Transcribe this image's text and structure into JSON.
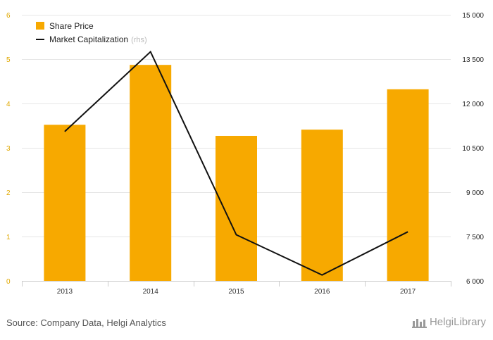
{
  "chart_data": {
    "type": "bar",
    "categories": [
      "2013",
      "2014",
      "2015",
      "2016",
      "2017"
    ],
    "series": [
      {
        "name": "Share Price",
        "kind": "bar",
        "axis": "left",
        "color": "#f7a900",
        "values": [
          3.52,
          4.87,
          3.27,
          3.41,
          4.32
        ]
      },
      {
        "name": "Market Capitalization",
        "axis_note": "(rhs)",
        "kind": "line",
        "axis": "right",
        "color": "#111111",
        "values": [
          11050,
          13750,
          7560,
          6200,
          7660
        ]
      }
    ],
    "left_axis": {
      "ylim": [
        0,
        6
      ],
      "ticks": [
        "0",
        "1",
        "2",
        "3",
        "4",
        "5",
        "6"
      ],
      "color": "#e0a800"
    },
    "right_axis": {
      "ylim": [
        6000,
        15000
      ],
      "ticks": [
        "6 000",
        "7 500",
        "9 000",
        "10 500",
        "12 000",
        "13 500",
        "15 000"
      ]
    },
    "grid": true,
    "legend_position": "top-left"
  },
  "footer": {
    "source": "Source: Company Data, Helgi Analytics",
    "brand": "HelgiLibrary",
    "brand_icon": "helgi-logo-icon"
  }
}
